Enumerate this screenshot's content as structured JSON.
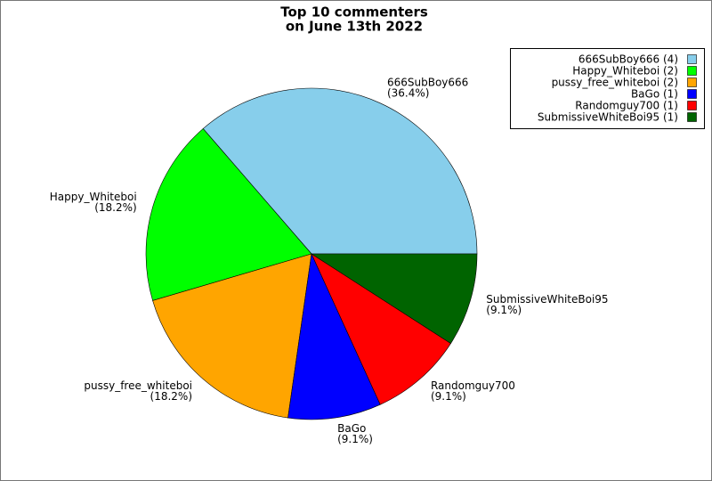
{
  "chart_data": {
    "type": "pie",
    "title": [
      "Top 10 commenters",
      "on June 13th 2022"
    ],
    "categories": [
      "666SubBoy666",
      "Happy_Whiteboi",
      "pussy_free_whiteboi",
      "BaGo",
      "Randomguy700",
      "SubmissiveWhiteBoi95"
    ],
    "values": [
      36.4,
      18.2,
      18.2,
      9.1,
      9.1,
      9.1
    ],
    "value_labels": [
      "(36.4%)",
      "(18.2%)",
      "(18.2%)",
      "(9.1%)",
      "(9.1%)",
      "(9.1%)"
    ],
    "colors": [
      "#87ceeb",
      "#00ff00",
      "#ffa500",
      "#0000ff",
      "#ff0000",
      "#006400"
    ],
    "legend_labels": [
      "666SubBoy666 (4)",
      "Happy_Whiteboi (2)",
      "pussy_free_whiteboi (2)",
      "BaGo (1)",
      "Randomguy700 (1)",
      "SubmissiveWhiteBoi95 (1)"
    ],
    "legend": "upper right"
  }
}
